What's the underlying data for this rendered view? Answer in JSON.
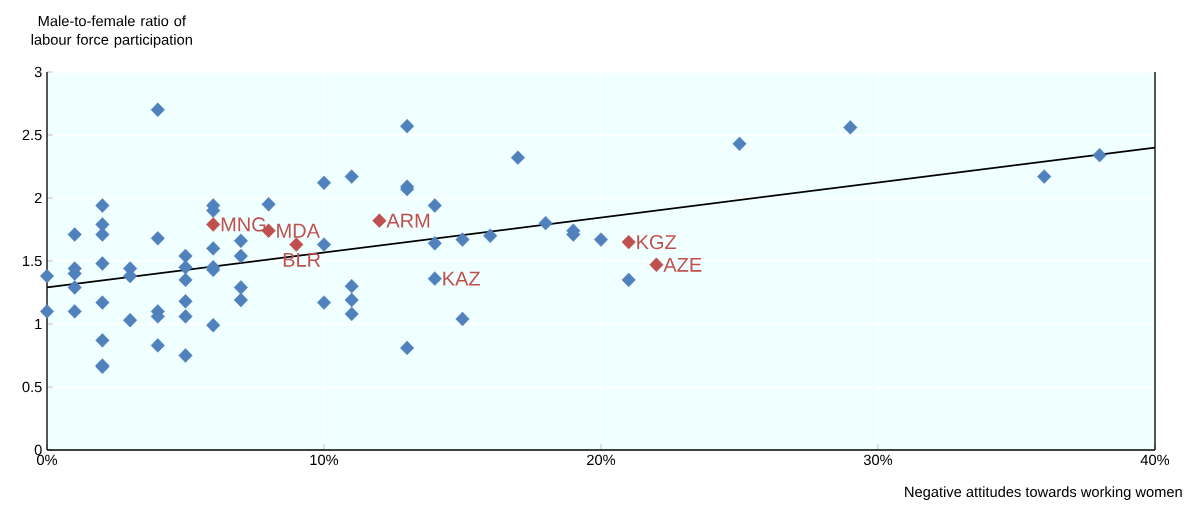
{
  "chart_data": {
    "type": "scatter",
    "xlabel": "Negative attitudes towards working women",
    "ylabel": "Male-to-female ratio of labour force participation",
    "xlim": [
      0,
      40
    ],
    "ylim": [
      0,
      3
    ],
    "xticks": [
      {
        "value": 0,
        "label": "0%"
      },
      {
        "value": 10,
        "label": "10%"
      },
      {
        "value": 20,
        "label": "20%"
      },
      {
        "value": 30,
        "label": "30%"
      },
      {
        "value": 40,
        "label": "40%"
      }
    ],
    "yticks": [
      0,
      0.5,
      1,
      1.5,
      2,
      2.5,
      3
    ],
    "grid": true,
    "marker": "diamond",
    "series": [
      {
        "color": "#4f81bd",
        "x": [
          0,
          0,
          1,
          1,
          1,
          1,
          1,
          2,
          2,
          2,
          2,
          2,
          2,
          2,
          2,
          3,
          3,
          3,
          4,
          4,
          4,
          4,
          4,
          5,
          5,
          5,
          5,
          5,
          5,
          6,
          6,
          6,
          6,
          6,
          6,
          7,
          7,
          7,
          7,
          8,
          10,
          10,
          10,
          11,
          11,
          11,
          11,
          13,
          13,
          13,
          13,
          14,
          14,
          14,
          15,
          15,
          16,
          17,
          18,
          19,
          19,
          20,
          21,
          25,
          29,
          36,
          38
        ],
        "values": [
          1.38,
          1.1,
          1.71,
          1.44,
          1.4,
          1.29,
          1.1,
          1.94,
          1.79,
          1.71,
          1.48,
          1.17,
          0.87,
          0.67,
          0.66,
          1.44,
          1.38,
          1.03,
          2.7,
          1.68,
          1.1,
          1.06,
          0.83,
          1.54,
          1.45,
          1.35,
          1.18,
          1.06,
          0.75,
          1.94,
          1.9,
          1.6,
          1.45,
          1.43,
          0.99,
          1.66,
          1.54,
          1.29,
          1.19,
          1.95,
          2.12,
          1.63,
          1.17,
          2.17,
          1.3,
          1.19,
          1.08,
          2.57,
          2.09,
          2.07,
          0.81,
          1.94,
          1.64,
          1.36,
          1.67,
          1.04,
          1.7,
          2.32,
          1.8,
          1.74,
          1.71,
          1.67,
          1.35,
          2.43,
          2.56,
          2.17,
          2.34
        ]
      },
      {
        "color": "#c0504d",
        "x": [
          6,
          8,
          9,
          12,
          21,
          22
        ],
        "values": [
          1.79,
          1.74,
          1.63,
          1.82,
          1.65,
          1.47
        ]
      },
      {
        "type": "line",
        "color": "#000000",
        "x": [
          0,
          40
        ],
        "values": [
          1.29,
          2.4
        ],
        "marker": "none"
      }
    ],
    "annotations": [
      {
        "text": "MNG",
        "x": 6,
        "y": 1.79
      },
      {
        "text": "MDA",
        "x": 8,
        "y": 1.74
      },
      {
        "text": "BLR",
        "x": 9,
        "y": 1.63
      },
      {
        "text": "ARM",
        "x": 12,
        "y": 1.82
      },
      {
        "text": "KAZ",
        "x": 14,
        "y": 1.36
      },
      {
        "text": "KGZ",
        "x": 21,
        "y": 1.65
      },
      {
        "text": "AZE",
        "x": 22,
        "y": 1.47
      }
    ]
  }
}
